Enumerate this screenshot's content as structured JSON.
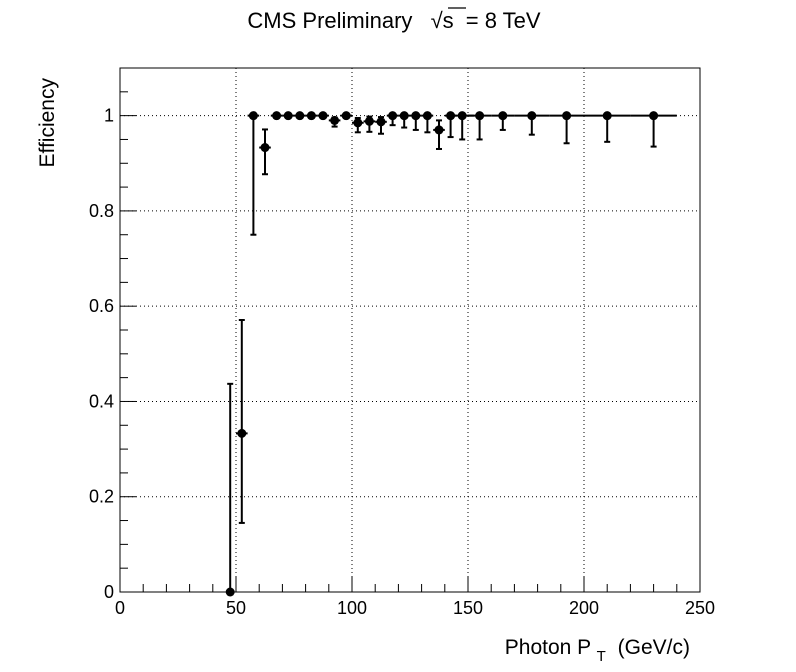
{
  "chart_data": {
    "type": "scatter",
    "title_prefix": "CMS Preliminary",
    "title_sqrt": "√s",
    "title_suffix": "= 8 TeV",
    "xlabel_main": "Photon P",
    "xlabel_sub": "T",
    "xlabel_unit": "(GeV/c)",
    "ylabel": "Efficiency",
    "xlim": [
      0,
      250
    ],
    "ylim": [
      0,
      1.1
    ],
    "grid": true,
    "x_tick_labels": [
      "0",
      "50",
      "100",
      "150",
      "200",
      "250"
    ],
    "y_tick_labels": [
      "0",
      "0.2",
      "0.4",
      "0.6",
      "0.8",
      "1"
    ],
    "points": [
      {
        "x": 47.5,
        "y": 0.0,
        "xerr": 0,
        "err_lo": 0.0,
        "err_hi": 0.437
      },
      {
        "x": 52.5,
        "y": 0.333,
        "xerr": 2.5,
        "err_lo": 0.188,
        "err_hi": 0.238
      },
      {
        "x": 57.5,
        "y": 1.0,
        "xerr": 2.5,
        "err_lo": 0.25,
        "err_hi": 0.0
      },
      {
        "x": 62.5,
        "y": 0.933,
        "xerr": 2.5,
        "err_lo": 0.056,
        "err_hi": 0.038
      },
      {
        "x": 67.5,
        "y": 1.0,
        "xerr": 2.5,
        "err_lo": 0.0,
        "err_hi": 0.0
      },
      {
        "x": 72.5,
        "y": 1.0,
        "xerr": 2.5,
        "err_lo": 0.0,
        "err_hi": 0.0
      },
      {
        "x": 77.5,
        "y": 1.0,
        "xerr": 2.5,
        "err_lo": 0.0,
        "err_hi": 0.0
      },
      {
        "x": 82.5,
        "y": 1.0,
        "xerr": 2.5,
        "err_lo": 0.0,
        "err_hi": 0.0
      },
      {
        "x": 87.5,
        "y": 1.0,
        "xerr": 2.5,
        "err_lo": 0.0,
        "err_hi": 0.0
      },
      {
        "x": 92.5,
        "y": 0.99,
        "xerr": 2.5,
        "err_lo": 0.013,
        "err_hi": 0.006
      },
      {
        "x": 97.5,
        "y": 1.0,
        "xerr": 2.5,
        "err_lo": 0.0,
        "err_hi": 0.0
      },
      {
        "x": 102.5,
        "y": 0.985,
        "xerr": 2.5,
        "err_lo": 0.02,
        "err_hi": 0.01
      },
      {
        "x": 107.5,
        "y": 0.988,
        "xerr": 2.5,
        "err_lo": 0.022,
        "err_hi": 0.01
      },
      {
        "x": 112.5,
        "y": 0.987,
        "xerr": 2.5,
        "err_lo": 0.025,
        "err_hi": 0.01
      },
      {
        "x": 117.5,
        "y": 1.0,
        "xerr": 2.5,
        "err_lo": 0.02,
        "err_hi": 0.0
      },
      {
        "x": 122.5,
        "y": 1.0,
        "xerr": 2.5,
        "err_lo": 0.025,
        "err_hi": 0.0
      },
      {
        "x": 127.5,
        "y": 1.0,
        "xerr": 2.5,
        "err_lo": 0.03,
        "err_hi": 0.0
      },
      {
        "x": 132.5,
        "y": 1.0,
        "xerr": 2.5,
        "err_lo": 0.035,
        "err_hi": 0.0
      },
      {
        "x": 137.5,
        "y": 0.97,
        "xerr": 2.5,
        "err_lo": 0.04,
        "err_hi": 0.02
      },
      {
        "x": 142.5,
        "y": 1.0,
        "xerr": 2.5,
        "err_lo": 0.045,
        "err_hi": 0.0
      },
      {
        "x": 147.5,
        "y": 1.0,
        "xerr": 5,
        "err_lo": 0.05,
        "err_hi": 0.0
      },
      {
        "x": 155,
        "y": 1.0,
        "xerr": 5,
        "err_lo": 0.05,
        "err_hi": 0.0
      },
      {
        "x": 165,
        "y": 1.0,
        "xerr": 5,
        "err_lo": 0.03,
        "err_hi": 0.0
      },
      {
        "x": 177.5,
        "y": 1.0,
        "xerr": 7.5,
        "err_lo": 0.04,
        "err_hi": 0.0
      },
      {
        "x": 192.5,
        "y": 1.0,
        "xerr": 7.5,
        "err_lo": 0.058,
        "err_hi": 0.0
      },
      {
        "x": 210,
        "y": 1.0,
        "xerr": 10,
        "err_lo": 0.055,
        "err_hi": 0.0
      },
      {
        "x": 230,
        "y": 1.0,
        "xerr": 10,
        "err_lo": 0.065,
        "err_hi": 0.0
      }
    ]
  }
}
